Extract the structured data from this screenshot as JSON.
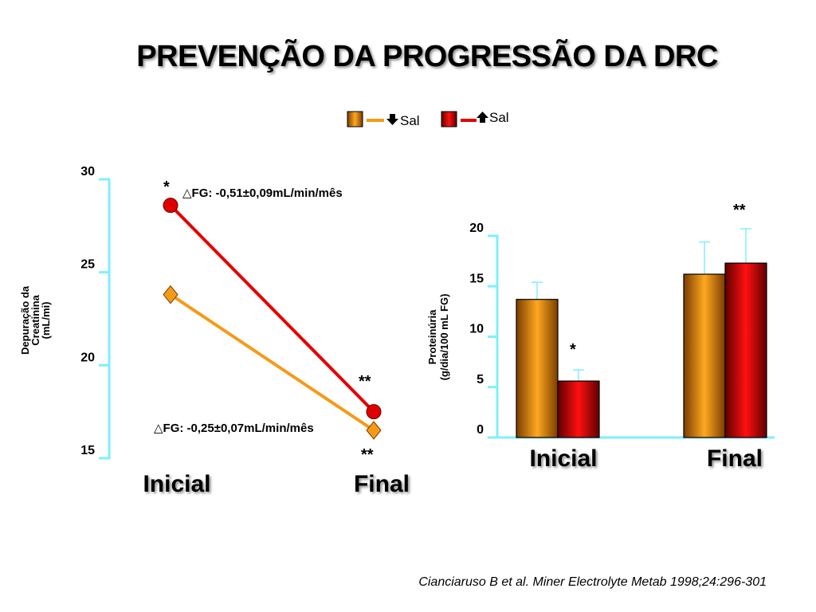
{
  "slide": {
    "title": "PREVENÇÃO DA PROGRESSÃO DA DRC",
    "citation": "Cianciaruso B et al. Miner Electrolyte Metab 1998;24:296-301"
  },
  "legend": [
    {
      "label": "Sal",
      "direction": "down",
      "color": "#f59a17",
      "gradient_dark": "#7a3d00",
      "line_color": "#f59a17"
    },
    {
      "label": "Sal",
      "direction": "up",
      "color": "#e00000",
      "gradient_dark": "#600000",
      "line_color": "#e60000"
    }
  ],
  "colors": {
    "axis": "#7fefff",
    "low_salt": "#f59a17",
    "high_salt": "#e00000"
  },
  "chart_data": [
    {
      "type": "line",
      "ylabel": [
        "Depuração da",
        "Creatinina",
        "(mL/mi)"
      ],
      "ylim": [
        15,
        30
      ],
      "yticks": [
        "15",
        "20",
        "25",
        "30"
      ],
      "categories": [
        "Inicial",
        "Final"
      ],
      "grid": false,
      "series": [
        {
          "legend_index": 0,
          "marker": "diamond",
          "values": [
            23.8,
            16.5
          ]
        },
        {
          "legend_index": 1,
          "marker": "circle",
          "values": [
            28.6,
            17.5
          ]
        }
      ],
      "annotations": [
        {
          "text": "△FG: -0,51±0,09mL/min/mês"
        },
        {
          "text": "△FG: -0,25±0,07mL/min/mês"
        },
        {
          "text": "*"
        },
        {
          "text": "**"
        },
        {
          "text": "**"
        }
      ]
    },
    {
      "type": "bar",
      "ylabel": [
        "Proteinúria",
        "(g/dia/100 mL FG)"
      ],
      "ylim": [
        0,
        20
      ],
      "yticks": [
        "0",
        "5",
        "10",
        "15",
        "20"
      ],
      "categories": [
        "Inicial",
        "Final"
      ],
      "grid": false,
      "series": [
        {
          "legend_index": 0,
          "values": [
            13.7,
            16.2
          ],
          "errors": [
            1.7,
            3.2
          ]
        },
        {
          "legend_index": 1,
          "values": [
            5.6,
            17.3
          ],
          "errors": [
            1.1,
            3.4
          ]
        }
      ],
      "annotations": [
        {
          "text": "*"
        },
        {
          "text": "**"
        }
      ]
    }
  ]
}
